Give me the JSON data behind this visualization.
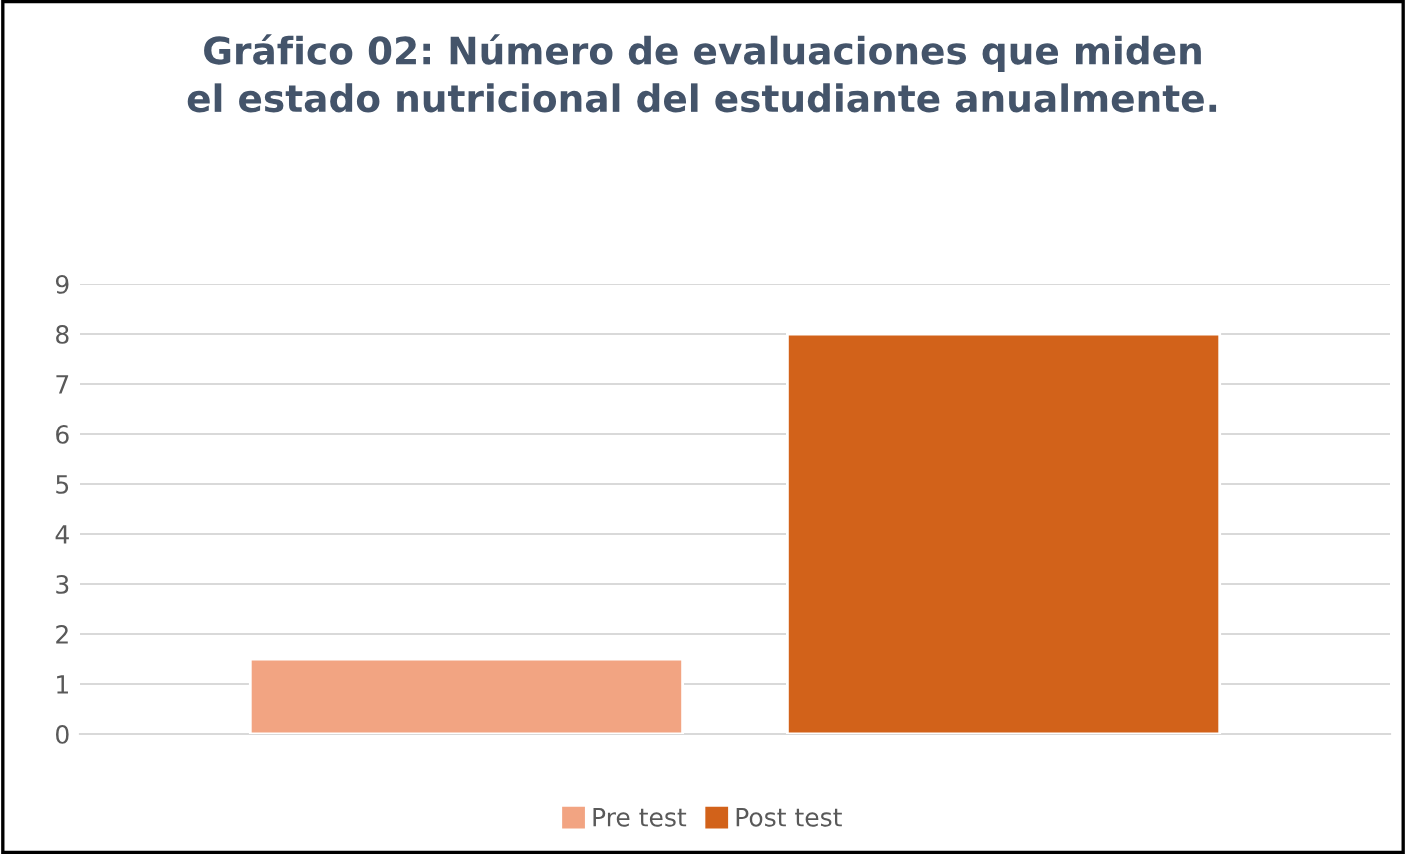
{
  "chart_data": {
    "type": "bar",
    "title": "Gráfico 02: Número de evaluaciones que miden\nel estado nutricional del estudiante anualmente.",
    "categories": [
      null
    ],
    "series": [
      {
        "name": "Pre test",
        "color": "#f2a482",
        "values": [
          1.5
        ]
      },
      {
        "name": "Post test",
        "color": "#d2621a",
        "values": [
          8
        ]
      }
    ],
    "ylim": [
      0,
      9
    ],
    "yticks": [
      0,
      1,
      2,
      3,
      4,
      5,
      6,
      7,
      8,
      9
    ],
    "grid": "y",
    "legend": "bottom"
  }
}
